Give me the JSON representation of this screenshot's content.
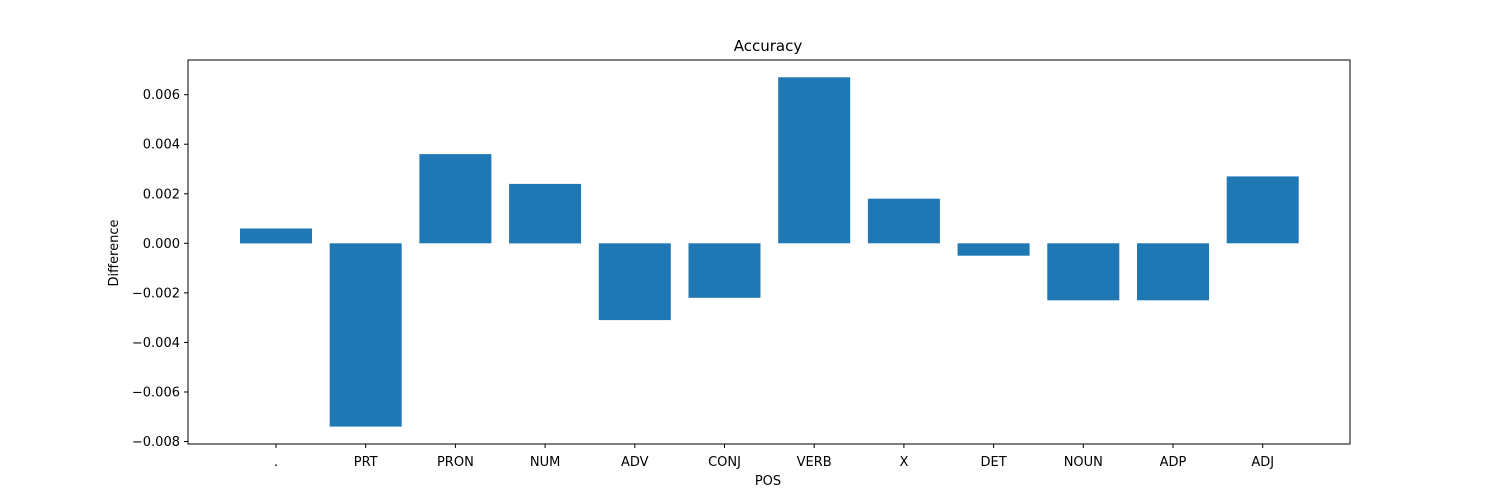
{
  "chart_data": {
    "type": "bar",
    "title": "Accuracy",
    "xlabel": "POS",
    "ylabel": "Difference",
    "categories": [
      ".",
      "PRT",
      "PRON",
      "NUM",
      "ADV",
      "CONJ",
      "VERB",
      "X",
      "DET",
      "NOUN",
      "ADP",
      "ADJ"
    ],
    "values": [
      0.0006,
      -0.0074,
      0.0036,
      0.0024,
      -0.0031,
      -0.0022,
      0.0067,
      0.0018,
      -0.0005,
      -0.0023,
      -0.0023,
      0.0027
    ],
    "ylim": [
      -0.0081,
      0.0074
    ],
    "yticks": [
      -0.008,
      -0.006,
      -0.004,
      -0.002,
      0.0,
      0.002,
      0.004,
      0.006
    ],
    "ytick_labels": [
      "−0.008",
      "−0.006",
      "−0.004",
      "−0.002",
      "0.000",
      "0.002",
      "0.004",
      "0.006"
    ],
    "bar_color": "#1f77b4",
    "grid": false,
    "legend": "none"
  }
}
